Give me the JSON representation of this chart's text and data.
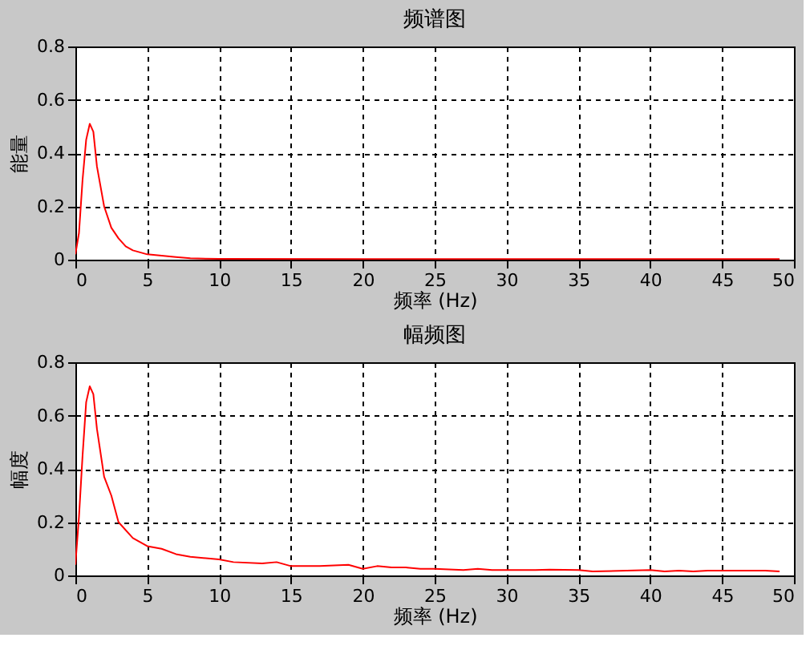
{
  "chart_data": [
    {
      "type": "line",
      "title": "频谱图",
      "xlabel": "频率 (Hz)",
      "ylabel": "能量",
      "xlim": [
        0,
        50
      ],
      "ylim": [
        0,
        0.8
      ],
      "xticks": [
        0,
        5,
        10,
        15,
        20,
        25,
        30,
        35,
        40,
        45,
        50
      ],
      "yticks": [
        0,
        0.2,
        0.4,
        0.6,
        0.8
      ],
      "grid": true,
      "line_style": "solid",
      "series": [
        {
          "color": "#ff0000",
          "x": [
            0,
            0.25,
            0.5,
            0.75,
            1,
            1.25,
            1.5,
            2,
            2.5,
            3,
            3.5,
            4,
            5,
            6,
            7,
            8,
            10,
            20,
            30,
            40,
            49
          ],
          "values": [
            0.02,
            0.1,
            0.3,
            0.45,
            0.51,
            0.48,
            0.35,
            0.2,
            0.12,
            0.08,
            0.05,
            0.035,
            0.02,
            0.015,
            0.01,
            0.005,
            0.003,
            0.002,
            0.002,
            0.002,
            0.002
          ]
        }
      ]
    },
    {
      "type": "line",
      "title": "幅频图",
      "xlabel": "频率 (Hz)",
      "ylabel": "幅度",
      "xlim": [
        0,
        50
      ],
      "ylim": [
        0,
        0.8
      ],
      "xticks": [
        0,
        5,
        10,
        15,
        20,
        25,
        30,
        35,
        40,
        45,
        50
      ],
      "yticks": [
        0,
        0.2,
        0.4,
        0.6,
        0.8
      ],
      "grid": true,
      "line_style": "solid",
      "series": [
        {
          "color": "#ff0000",
          "x": [
            0,
            0.25,
            0.5,
            0.75,
            1,
            1.25,
            1.5,
            2,
            2.5,
            3,
            4,
            5,
            6,
            7,
            8,
            10,
            11,
            13,
            14,
            15,
            17,
            19,
            20,
            21,
            22,
            23,
            24,
            25,
            27,
            28,
            29,
            32,
            33,
            35,
            36,
            40,
            41,
            42,
            43,
            44,
            48,
            49
          ],
          "values": [
            0.04,
            0.22,
            0.45,
            0.65,
            0.71,
            0.68,
            0.55,
            0.37,
            0.3,
            0.2,
            0.14,
            0.11,
            0.1,
            0.08,
            0.07,
            0.06,
            0.05,
            0.045,
            0.05,
            0.035,
            0.035,
            0.04,
            0.025,
            0.035,
            0.03,
            0.03,
            0.025,
            0.025,
            0.02,
            0.025,
            0.02,
            0.02,
            0.022,
            0.02,
            0.015,
            0.02,
            0.015,
            0.018,
            0.015,
            0.018,
            0.018,
            0.015
          ]
        }
      ]
    }
  ]
}
